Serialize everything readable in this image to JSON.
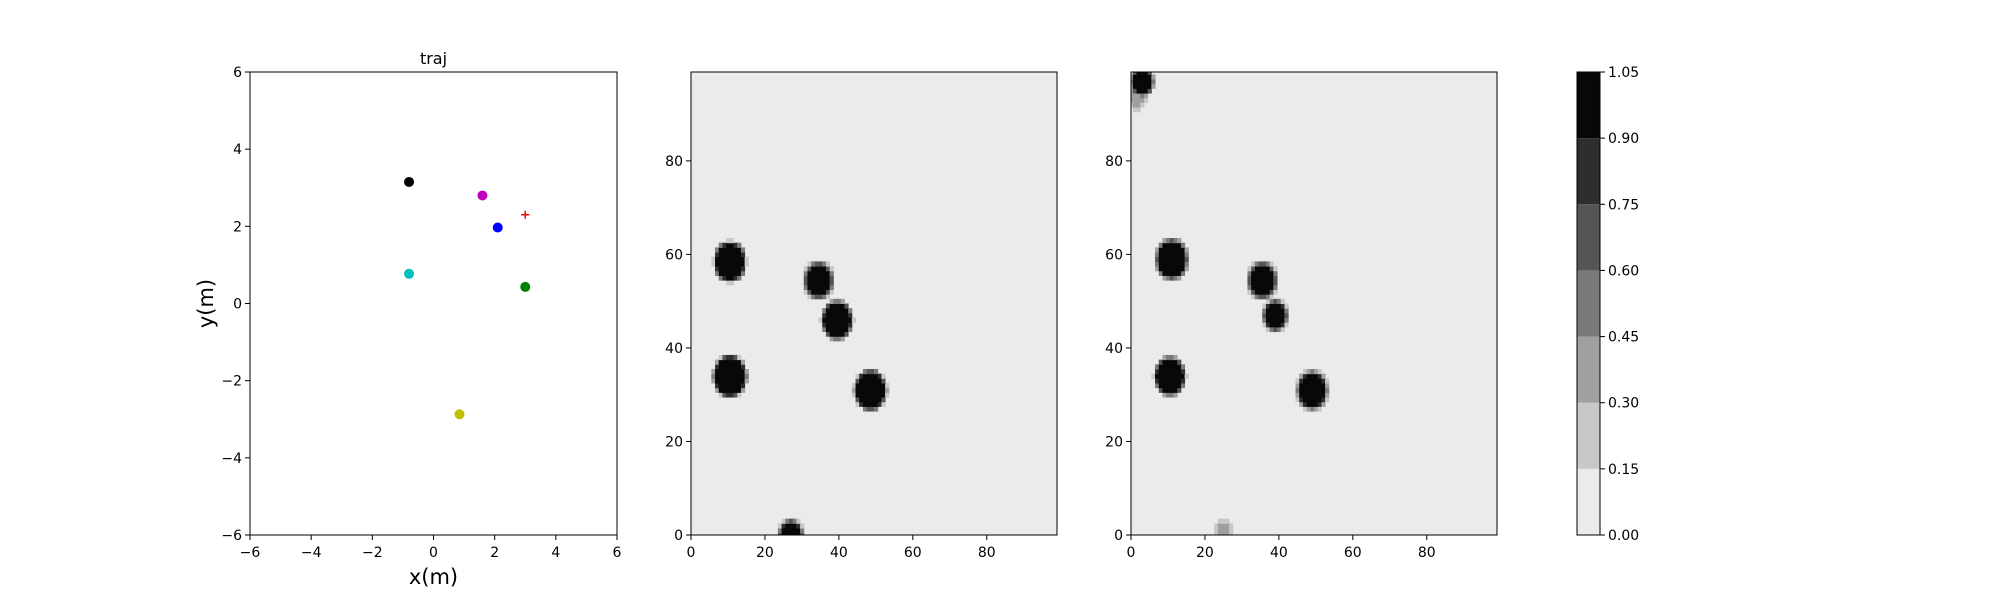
{
  "figure": {
    "background": "#ffffff"
  },
  "chart_data": [
    {
      "type": "scatter",
      "title": "traj",
      "xlabel": "x(m)",
      "ylabel": "y(m)",
      "xlim": [
        -6,
        6
      ],
      "ylim": [
        -6,
        6
      ],
      "xticks": [
        -6,
        -4,
        -2,
        0,
        2,
        4,
        6
      ],
      "yticks": [
        -6,
        -4,
        -2,
        0,
        2,
        4,
        6
      ],
      "xtick_labels": [
        "−6",
        "−4",
        "−2",
        "0",
        "2",
        "4",
        "6"
      ],
      "ytick_labels": [
        "−6",
        "−4",
        "−2",
        "0",
        "2",
        "4",
        "6"
      ],
      "grid": false,
      "points": [
        {
          "x": -0.8,
          "y": 3.15,
          "color": "#000000",
          "marker": "circle"
        },
        {
          "x": 1.6,
          "y": 2.8,
          "color": "#c000c0",
          "marker": "circle"
        },
        {
          "x": 2.1,
          "y": 1.97,
          "color": "#0000ff",
          "marker": "circle"
        },
        {
          "x": 3.0,
          "y": 2.3,
          "color": "#ff0000",
          "marker": "plus"
        },
        {
          "x": -0.8,
          "y": 0.77,
          "color": "#00bfbf",
          "marker": "circle"
        },
        {
          "x": 3.0,
          "y": 0.43,
          "color": "#008000",
          "marker": "circle"
        },
        {
          "x": 0.85,
          "y": -2.87,
          "color": "#bfbf00",
          "marker": "circle"
        }
      ]
    },
    {
      "type": "heatmap",
      "xlim": [
        0,
        99
      ],
      "ylim": [
        0,
        99
      ],
      "xticks": [
        0,
        20,
        40,
        60,
        80
      ],
      "yticks": [
        0,
        20,
        40,
        60,
        80
      ],
      "xtick_labels": [
        "0",
        "20",
        "40",
        "60",
        "80"
      ],
      "ytick_labels": [
        "0",
        "20",
        "40",
        "60",
        "80"
      ],
      "background_value": 0.05,
      "blobs": [
        {
          "x": 10.5,
          "y": 58.5,
          "r": 3.6,
          "value": 1.0
        },
        {
          "x": 34.5,
          "y": 54.5,
          "r": 3.2,
          "value": 1.0
        },
        {
          "x": 39.5,
          "y": 46.0,
          "r": 3.4,
          "value": 1.0
        },
        {
          "x": 10.5,
          "y": 34.0,
          "r": 3.8,
          "value": 1.0
        },
        {
          "x": 48.5,
          "y": 31.0,
          "r": 3.6,
          "value": 1.0
        },
        {
          "x": 27.0,
          "y": 0.0,
          "r": 2.6,
          "value": 1.0
        }
      ]
    },
    {
      "type": "heatmap",
      "xlim": [
        0,
        99
      ],
      "ylim": [
        0,
        99
      ],
      "xticks": [
        0,
        20,
        40,
        60,
        80
      ],
      "yticks": [
        0,
        20,
        40,
        60,
        80
      ],
      "xtick_labels": [
        "0",
        "20",
        "40",
        "60",
        "80"
      ],
      "ytick_labels": [
        "0",
        "20",
        "40",
        "60",
        "80"
      ],
      "background_value": 0.05,
      "blobs": [
        {
          "x": 11.0,
          "y": 59.0,
          "r": 3.6,
          "value": 1.0
        },
        {
          "x": 35.5,
          "y": 54.5,
          "r": 3.2,
          "value": 1.0
        },
        {
          "x": 39.0,
          "y": 47.0,
          "r": 2.6,
          "value": 1.0
        },
        {
          "x": 10.5,
          "y": 34.0,
          "r": 3.4,
          "value": 1.0
        },
        {
          "x": 49.0,
          "y": 31.0,
          "r": 3.4,
          "value": 1.0
        },
        {
          "x": 3.0,
          "y": 97.0,
          "r": 2.4,
          "value": 0.95
        },
        {
          "x": 1.5,
          "y": 94.0,
          "r": 2.4,
          "value": 0.3
        },
        {
          "x": 25.0,
          "y": 1.0,
          "r": 1.6,
          "value": 0.3
        }
      ]
    },
    {
      "type": "colorbar",
      "levels": [
        0.0,
        0.15,
        0.3,
        0.45,
        0.6,
        0.75,
        0.9,
        1.05
      ],
      "tick_labels": [
        "0.00",
        "0.15",
        "0.30",
        "0.45",
        "0.60",
        "0.75",
        "0.90",
        "1.05"
      ],
      "colors": [
        "#ebebeb",
        "#c8c8c8",
        "#a0a0a0",
        "#7a7a7a",
        "#555555",
        "#2e2e2e",
        "#080808"
      ]
    }
  ]
}
